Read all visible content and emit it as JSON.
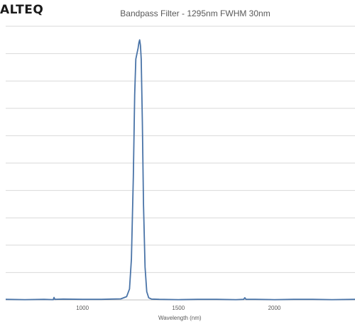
{
  "header": {
    "logo_text": "ALTEQ"
  },
  "chart_data": {
    "type": "line",
    "title": "Bandpass Filter - 1295nm FWHM 30nm",
    "xlabel": "Wavelength (nm)",
    "ylabel": "",
    "x_ticks": [
      1000,
      1500,
      2000
    ],
    "xlim": [
      600,
      2420
    ],
    "ylim": [
      0,
      100
    ],
    "y_gridlines": [
      0,
      10,
      20,
      30,
      40,
      50,
      60,
      70,
      80,
      90,
      100
    ],
    "grid": true,
    "line_color": "#4a74a8",
    "series": [
      {
        "name": "",
        "points": [
          [
            600,
            0.2
          ],
          [
            700,
            0.1
          ],
          [
            800,
            0.2
          ],
          [
            848,
            0.1
          ],
          [
            852,
            0.9
          ],
          [
            856,
            0.2
          ],
          [
            900,
            0.3
          ],
          [
            1000,
            0.2
          ],
          [
            1100,
            0.2
          ],
          [
            1150,
            0.3
          ],
          [
            1200,
            0.4
          ],
          [
            1230,
            1.2
          ],
          [
            1245,
            4
          ],
          [
            1255,
            15
          ],
          [
            1265,
            45
          ],
          [
            1272,
            75
          ],
          [
            1278,
            88
          ],
          [
            1284,
            90
          ],
          [
            1290,
            92
          ],
          [
            1294,
            94
          ],
          [
            1298,
            95
          ],
          [
            1302,
            93
          ],
          [
            1306,
            88
          ],
          [
            1312,
            65
          ],
          [
            1318,
            35
          ],
          [
            1326,
            12
          ],
          [
            1335,
            3
          ],
          [
            1345,
            0.8
          ],
          [
            1360,
            0.3
          ],
          [
            1400,
            0.2
          ],
          [
            1500,
            0.1
          ],
          [
            1600,
            0.2
          ],
          [
            1700,
            0.2
          ],
          [
            1800,
            0.1
          ],
          [
            1840,
            0.2
          ],
          [
            1846,
            0.8
          ],
          [
            1852,
            0.2
          ],
          [
            1900,
            0.2
          ],
          [
            2000,
            0.1
          ],
          [
            2100,
            0.2
          ],
          [
            2200,
            0.2
          ],
          [
            2300,
            0.1
          ],
          [
            2420,
            0.2
          ]
        ]
      }
    ]
  }
}
